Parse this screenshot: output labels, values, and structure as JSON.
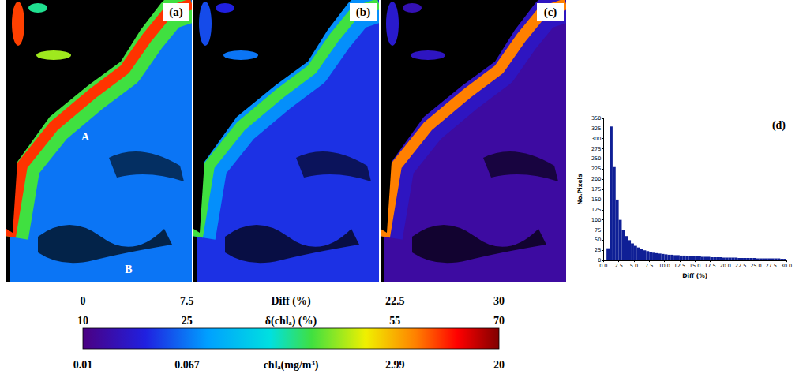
{
  "panels": [
    {
      "label": "(a)",
      "annotations": [
        "A",
        "B"
      ]
    },
    {
      "label": "(b)"
    },
    {
      "label": "(c)"
    }
  ],
  "colorbar": {
    "scales": [
      {
        "title": "Diff (%)",
        "range": [
          0,
          30
        ],
        "ticks": [
          0,
          7.5,
          22.5,
          30
        ]
      },
      {
        "title": "δ(chlₐ) (%)",
        "range": [
          10,
          70
        ],
        "ticks": [
          10,
          25,
          55,
          70
        ]
      },
      {
        "title": "chlₐ(mg/m³)",
        "range": [
          0.01,
          20
        ],
        "ticks": [
          0.01,
          0.067,
          2.99,
          20
        ],
        "log": true
      }
    ]
  },
  "chart_data": {
    "type": "histogram",
    "title": "(d)",
    "x_label": "Diff (%)",
    "y_label": "No.Pixels",
    "bins": [
      0.5,
      1,
      1.5,
      2,
      2.5,
      3,
      3.5,
      4,
      4.5,
      5,
      5.5,
      6,
      6.5,
      7,
      7.5,
      8,
      8.5,
      9,
      9.5,
      10,
      10.5,
      11,
      11.5,
      12,
      12.5,
      13,
      13.5,
      14,
      14.5,
      15,
      15.5,
      16,
      16.5,
      17,
      17.5,
      18,
      18.5,
      19,
      19.5,
      20,
      20.5,
      21,
      21.5,
      22,
      22.5,
      23,
      23.5,
      24,
      24.5,
      25,
      25.5,
      26,
      26.5,
      27,
      27.5,
      28,
      28.5,
      29,
      29.5,
      30
    ],
    "counts": [
      30,
      330,
      230,
      150,
      100,
      75,
      60,
      50,
      42,
      36,
      32,
      28,
      25,
      23,
      21,
      19,
      18,
      17,
      16,
      15,
      14,
      14,
      13,
      13,
      12,
      12,
      11,
      11,
      10,
      10,
      10,
      9,
      9,
      9,
      8,
      8,
      8,
      8,
      7,
      7,
      7,
      7,
      7,
      6,
      6,
      6,
      6,
      6,
      6,
      5,
      5,
      5,
      5,
      5,
      5,
      5,
      5,
      4,
      4
    ],
    "color": "#0f1f96",
    "xlim": [
      0,
      30
    ],
    "ylim": [
      0,
      350
    ],
    "xticks": [
      {
        "value": 0,
        "label": "0.0"
      },
      {
        "value": 2.5,
        "label": "2.5"
      },
      {
        "value": 5,
        "label": "5.0"
      },
      {
        "value": 7.5,
        "label": "7.5"
      },
      {
        "value": 10,
        "label": "10.0"
      },
      {
        "value": 12.5,
        "label": "12.5"
      },
      {
        "value": 15,
        "label": "15.0"
      },
      {
        "value": 17.5,
        "label": "17.5"
      },
      {
        "value": 20,
        "label": "20.0"
      },
      {
        "value": 22.5,
        "label": "22.5"
      },
      {
        "value": 25,
        "label": "25.0"
      },
      {
        "value": 27.5,
        "label": "27.5"
      },
      {
        "value": 30,
        "label": "30.0"
      }
    ],
    "yticks": [
      0,
      25,
      50,
      75,
      100,
      125,
      150,
      175,
      200,
      225,
      250,
      275,
      300,
      325,
      350
    ]
  }
}
